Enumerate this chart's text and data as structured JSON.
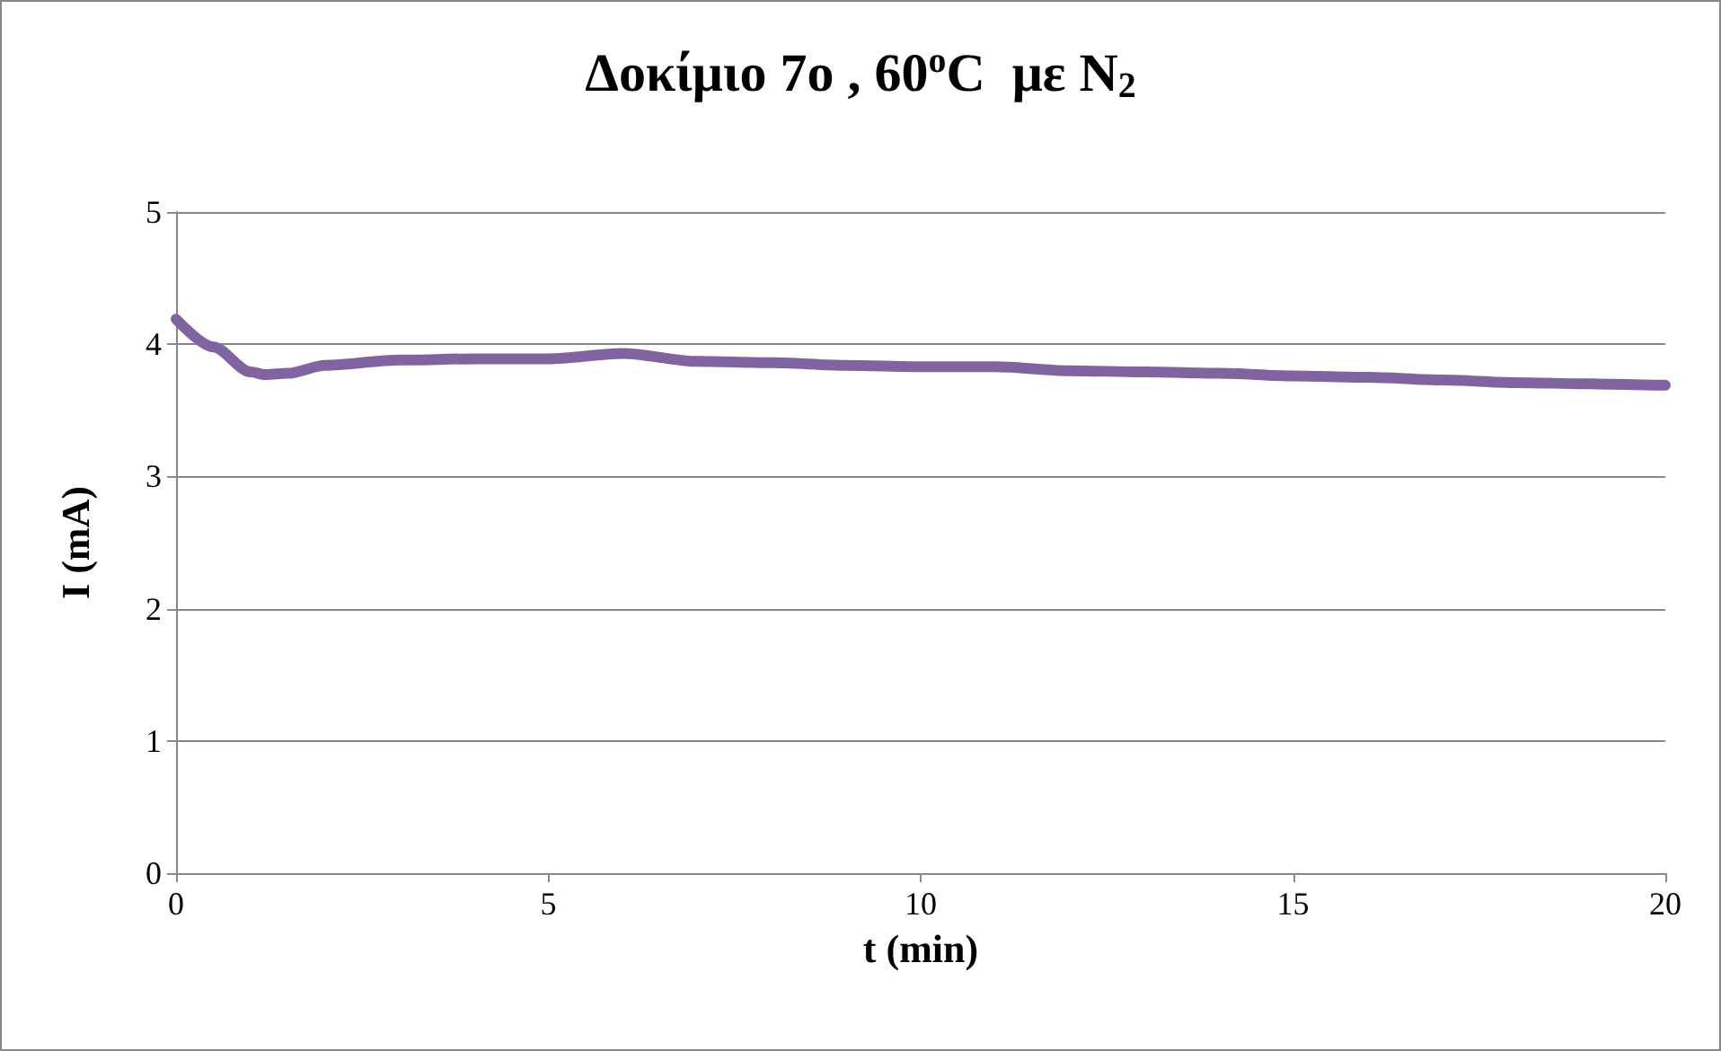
{
  "chart_data": {
    "type": "line",
    "title": "Δοκίμιο 7ο , 60$^{o}$C  με N$_{2}$",
    "xlabel": "t (min)",
    "ylabel": "I (mA)",
    "x": [
      0,
      0.5,
      1,
      1.2,
      1.5,
      2,
      3,
      4,
      5,
      6,
      7,
      8,
      9,
      10,
      11,
      12,
      13,
      14,
      15,
      16,
      17,
      18,
      19,
      20
    ],
    "series": [
      {
        "color": "#8064a2",
        "values": [
          4.19,
          3.98,
          3.79,
          3.77,
          3.78,
          3.84,
          3.88,
          3.89,
          3.89,
          3.93,
          3.87,
          3.86,
          3.84,
          3.83,
          3.83,
          3.8,
          3.79,
          3.78,
          3.76,
          3.75,
          3.73,
          3.71,
          3.7,
          3.69
        ]
      }
    ],
    "xlim": [
      0,
      20
    ],
    "xticks": [
      0,
      5,
      10,
      15,
      20
    ],
    "ylim": [
      0,
      5
    ],
    "yticks": [
      0,
      1,
      2,
      3,
      4,
      5
    ],
    "grid": "y",
    "marker": "none",
    "line_style": "solid"
  }
}
